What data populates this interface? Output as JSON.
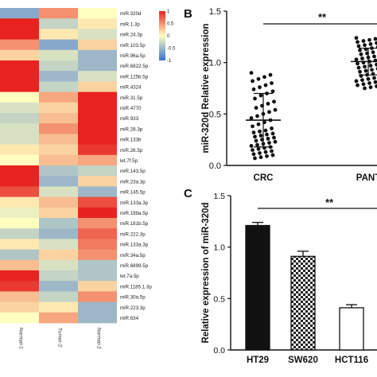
{
  "chart_data": [
    {
      "panel": "",
      "type": "heatmap",
      "columns": [
        "Normal-1",
        "Tumor-2",
        "Normal-2"
      ],
      "rows": [
        "miR.320d",
        "miR.1.3p",
        "miR.24.3p",
        "miR.103.5p",
        "miR.96a.5p",
        "miR.6822.5p",
        "miR.125b.5p",
        "miR.4324",
        "miR.31.5p",
        "miR.4770",
        "miR.933",
        "miR.28.3p",
        "miR.133b",
        "miR.26.5p",
        "let.7f.5p",
        "miR.143.5p",
        "miR.23a.3p",
        "miR.145.5p",
        "miR.133a.3p",
        "miR.199a.5p",
        "miR.181b.5p",
        "miR.222.3p",
        "miR.133a.3p",
        "miR.34a.5p",
        "miR.6899.5p",
        "let.7a.5p",
        "miR.1185.1.3p",
        "miR.30a.5p",
        "miR.223.3p",
        "miR.634"
      ],
      "values": [
        [
          -0.6,
          0.5,
          0.0
        ],
        [
          1.0,
          -0.3,
          0.1
        ],
        [
          1.0,
          0.1,
          -0.2
        ],
        [
          0.5,
          -0.6,
          0.2
        ],
        [
          0.2,
          -0.2,
          -0.5
        ],
        [
          1.0,
          -0.3,
          -0.5
        ],
        [
          1.0,
          -0.5,
          -0.2
        ],
        [
          1.0,
          -0.3,
          0.2
        ],
        [
          0.0,
          0.4,
          1.0
        ],
        [
          -0.2,
          0.2,
          1.0
        ],
        [
          -0.3,
          0.3,
          1.0
        ],
        [
          -0.2,
          0.5,
          1.0
        ],
        [
          -0.2,
          0.3,
          1.0
        ],
        [
          0.1,
          0.2,
          0.9
        ],
        [
          0.0,
          0.3,
          0.4
        ],
        [
          1.0,
          -0.4,
          -0.3
        ],
        [
          1.0,
          -0.5,
          0.2
        ],
        [
          0.8,
          -0.2,
          -0.5
        ],
        [
          0.1,
          0.3,
          0.8
        ],
        [
          -0.1,
          0.2,
          1.0
        ],
        [
          0.0,
          -0.4,
          0.5
        ],
        [
          -0.3,
          -0.5,
          0.7
        ],
        [
          0.1,
          -0.2,
          0.6
        ],
        [
          -0.4,
          0.2,
          0.5
        ],
        [
          0.3,
          -0.2,
          -0.4
        ],
        [
          1.0,
          -0.3,
          -0.4
        ],
        [
          0.9,
          -0.5,
          0.2
        ],
        [
          0.3,
          -0.3,
          0.5
        ],
        [
          0.2,
          0.1,
          -0.5
        ],
        [
          0.0,
          0.4,
          -0.5
        ]
      ],
      "legend": {
        "ticks": [
          1,
          0.5,
          0,
          -0.5,
          -1
        ],
        "low": "#3a6fd0",
        "mid": "#ffffc0",
        "high": "#e8231f"
      }
    },
    {
      "panel": "B",
      "type": "scatter",
      "ylabel": "miR-320d Relative expression",
      "categories": [
        "CRC",
        "PANT"
      ],
      "ylim": [
        0,
        1.5
      ],
      "yticks": [
        "0.0",
        "0.5",
        "1.0",
        "1.5"
      ],
      "groups": [
        {
          "name": "CRC",
          "mean": 0.44,
          "sd": 0.26,
          "points": [
            0.9,
            0.88,
            0.86,
            0.84,
            0.82,
            0.8,
            0.78,
            0.76,
            0.74,
            0.72,
            0.7,
            0.68,
            0.65,
            0.62,
            0.6,
            0.58,
            0.56,
            0.54,
            0.52,
            0.5,
            0.48,
            0.46,
            0.44,
            0.42,
            0.4,
            0.38,
            0.36,
            0.34,
            0.33,
            0.32,
            0.31,
            0.3,
            0.29,
            0.28,
            0.27,
            0.26,
            0.25,
            0.24,
            0.23,
            0.22,
            0.21,
            0.2,
            0.19,
            0.18,
            0.17,
            0.16,
            0.15,
            0.14,
            0.13,
            0.12,
            0.11,
            0.1,
            0.09,
            0.08,
            0.07
          ]
        },
        {
          "name": "PANT",
          "mean": 1.01,
          "sd": 0.13,
          "points": [
            1.24,
            1.23,
            1.22,
            1.21,
            1.2,
            1.19,
            1.18,
            1.17,
            1.16,
            1.15,
            1.14,
            1.13,
            1.12,
            1.11,
            1.1,
            1.09,
            1.08,
            1.07,
            1.06,
            1.05,
            1.04,
            1.03,
            1.02,
            1.01,
            1.0,
            0.99,
            0.98,
            0.97,
            0.96,
            0.95,
            0.94,
            0.93,
            0.92,
            0.91,
            0.9,
            0.89,
            0.88,
            0.87,
            0.86,
            0.85,
            0.84,
            0.83,
            0.82,
            0.81,
            0.8,
            0.79,
            0.78,
            0.77,
            0.76,
            0.75
          ]
        }
      ],
      "significance": "**"
    },
    {
      "panel": "C",
      "type": "bar",
      "ylabel": "Relative expression of miR-320d",
      "categories": [
        "HT29",
        "SW620",
        "HCT116"
      ],
      "values": [
        1.21,
        0.91,
        0.41
      ],
      "errors": [
        0.03,
        0.05,
        0.03
      ],
      "ylim": [
        0,
        1.5
      ],
      "yticks": [
        "0.0",
        "0.5",
        "1.0",
        "1.5"
      ],
      "fills": [
        "solid-black",
        "checkered",
        "white"
      ],
      "significance": "**"
    }
  ]
}
